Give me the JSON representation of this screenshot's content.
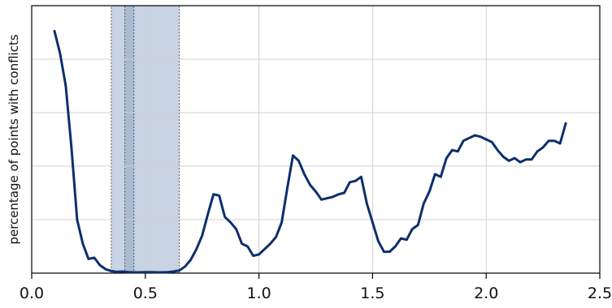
{
  "chart_data": {
    "type": "line",
    "title": "",
    "xlabel": "",
    "ylabel": "percentage of points with conflicts",
    "xlim": [
      0.0,
      2.5
    ],
    "ylim": [
      0,
      100
    ],
    "x_ticks": [
      0.0,
      0.5,
      1.0,
      1.5,
      2.0,
      2.5
    ],
    "x_tick_labels": [
      "0.0",
      "0.5",
      "1.0",
      "1.5",
      "2.0",
      "2.5"
    ],
    "y_gridlines": [
      20,
      40,
      60,
      80
    ],
    "y_tick_labels_shown": false,
    "grid": true,
    "legend": "none",
    "colors": {
      "line": "#0d2f6b",
      "band": "#c8d4e3",
      "band_inner": "#a9bbd1",
      "grid": "#d0d0d0",
      "axis": "#000000"
    },
    "shaded_regions": [
      {
        "x0": 0.35,
        "x1": 0.65,
        "style": "light"
      },
      {
        "x0": 0.41,
        "x1": 0.45,
        "style": "dark"
      }
    ],
    "series": [
      {
        "x": [
          0.1,
          0.125,
          0.15,
          0.175,
          0.2,
          0.225,
          0.25,
          0.275,
          0.3,
          0.325,
          0.35,
          0.375,
          0.4,
          0.425,
          0.45,
          0.475,
          0.5,
          0.525,
          0.55,
          0.575,
          0.6,
          0.625,
          0.65,
          0.675,
          0.7,
          0.725,
          0.75,
          0.775,
          0.8,
          0.825,
          0.85,
          0.875,
          0.9,
          0.925,
          0.95,
          0.975,
          1.0,
          1.025,
          1.05,
          1.075,
          1.1,
          1.125,
          1.15,
          1.175,
          1.2,
          1.225,
          1.25,
          1.275,
          1.3,
          1.325,
          1.35,
          1.375,
          1.4,
          1.425,
          1.45,
          1.475,
          1.5,
          1.525,
          1.55,
          1.575,
          1.6,
          1.625,
          1.65,
          1.675,
          1.7,
          1.725,
          1.75,
          1.775,
          1.8,
          1.825,
          1.85,
          1.875,
          1.9,
          1.925,
          1.95,
          1.975,
          2.0,
          2.025,
          2.05,
          2.075,
          2.1,
          2.125,
          2.15,
          2.175,
          2.2,
          2.225,
          2.25,
          2.275,
          2.3,
          2.325,
          2.35
        ],
        "values": [
          90.5,
          82.0,
          70.0,
          47.0,
          20.0,
          11.0,
          5.3,
          5.8,
          3.0,
          1.5,
          0.8,
          0.5,
          0.6,
          0.4,
          0.3,
          0.3,
          0.4,
          0.4,
          0.3,
          0.3,
          0.4,
          0.6,
          1.0,
          2.5,
          5.0,
          9.0,
          14.0,
          22.0,
          29.5,
          29.0,
          21.0,
          19.0,
          16.5,
          11.0,
          10.0,
          6.5,
          7.0,
          9.0,
          11.0,
          13.5,
          19.0,
          32.0,
          44.0,
          42.0,
          37.0,
          33.0,
          30.5,
          27.5,
          28.0,
          28.5,
          29.5,
          30.0,
          34.0,
          34.5,
          36.0,
          26.0,
          19.0,
          12.0,
          8.0,
          8.0,
          10.0,
          13.0,
          12.5,
          16.5,
          18.0,
          26.0,
          30.5,
          37.0,
          36.0,
          43.0,
          46.0,
          45.5,
          49.5,
          50.5,
          51.5,
          51.0,
          50.0,
          49.0,
          46.0,
          43.5,
          42.0,
          43.0,
          41.5,
          42.5,
          42.5,
          45.5,
          47.0,
          49.5,
          49.5,
          48.5,
          56.0
        ]
      }
    ]
  }
}
